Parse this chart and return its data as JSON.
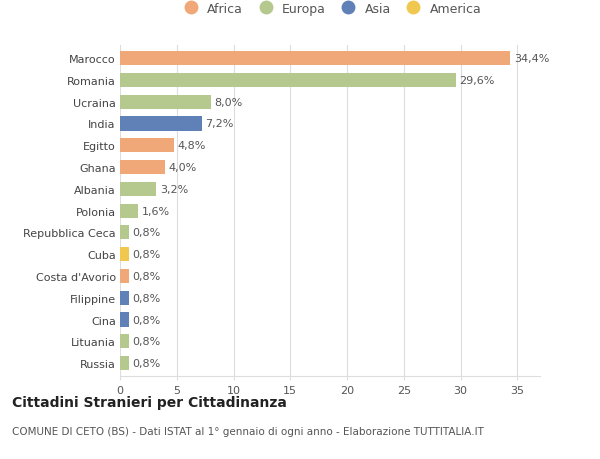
{
  "countries": [
    "Marocco",
    "Romania",
    "Ucraina",
    "India",
    "Egitto",
    "Ghana",
    "Albania",
    "Polonia",
    "Repubblica Ceca",
    "Cuba",
    "Costa d'Avorio",
    "Filippine",
    "Cina",
    "Lituania",
    "Russia"
  ],
  "values": [
    34.4,
    29.6,
    8.0,
    7.2,
    4.8,
    4.0,
    3.2,
    1.6,
    0.8,
    0.8,
    0.8,
    0.8,
    0.8,
    0.8,
    0.8
  ],
  "labels": [
    "34,4%",
    "29,6%",
    "8,0%",
    "7,2%",
    "4,8%",
    "4,0%",
    "3,2%",
    "1,6%",
    "0,8%",
    "0,8%",
    "0,8%",
    "0,8%",
    "0,8%",
    "0,8%",
    "0,8%"
  ],
  "regions": [
    "Africa",
    "Europa",
    "Europa",
    "Asia",
    "Africa",
    "Africa",
    "Europa",
    "Europa",
    "Europa",
    "America",
    "Africa",
    "Asia",
    "Asia",
    "Europa",
    "Europa"
  ],
  "region_colors": {
    "Africa": "#F0A878",
    "Europa": "#B5C98E",
    "Asia": "#6080B8",
    "America": "#F0C850"
  },
  "legend_order": [
    "Africa",
    "Europa",
    "Asia",
    "America"
  ],
  "title": "Cittadini Stranieri per Cittadinanza",
  "subtitle": "COMUNE DI CETO (BS) - Dati ISTAT al 1° gennaio di ogni anno - Elaborazione TUTTITALIA.IT",
  "xlim": [
    0,
    37
  ],
  "xticks": [
    0,
    5,
    10,
    15,
    20,
    25,
    30,
    35
  ],
  "background_color": "#ffffff",
  "grid_color": "#dddddd",
  "bar_height": 0.65,
  "label_fontsize": 8,
  "tick_fontsize": 8,
  "title_fontsize": 10,
  "subtitle_fontsize": 7.5,
  "legend_fontsize": 9
}
